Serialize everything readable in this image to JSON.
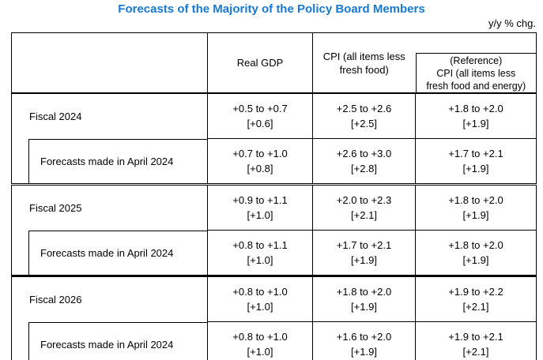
{
  "page": {
    "title": "Forecasts of the Majority of the Policy Board Members",
    "unit_note": "y/y % chg."
  },
  "colors": {
    "title_blue": "#1679d4",
    "table_border": "#000000",
    "background": "#ffffff"
  },
  "table": {
    "header": {
      "real_gdp": "Real GDP",
      "cpi": "CPI (all items less\nfresh food)",
      "reference": "(Reference)\nCPI (all items less\nfresh food and energy)"
    },
    "rows": [
      {
        "label": "Fiscal 2024",
        "indent": false,
        "gdp_range": "+0.5 to +0.7",
        "gdp_median": "[+0.6]",
        "cpi_range": "+2.5 to +2.6",
        "cpi_median": "[+2.5]",
        "ref_range": "+1.8 to +2.0",
        "ref_median": "[+1.9]"
      },
      {
        "label": "Forecasts made in April 2024",
        "indent": true,
        "gdp_range": "+0.7 to +1.0",
        "gdp_median": "[+0.8]",
        "cpi_range": "+2.6 to +3.0",
        "cpi_median": "[+2.8]",
        "ref_range": "+1.7 to +2.1",
        "ref_median": "[+1.9]"
      },
      {
        "label": "Fiscal 2025",
        "indent": false,
        "gdp_range": "+0.9 to +1.1",
        "gdp_median": "[+1.0]",
        "cpi_range": "+2.0 to +2.3",
        "cpi_median": "[+2.1]",
        "ref_range": "+1.8 to +2.0",
        "ref_median": "[+1.9]"
      },
      {
        "label": "Forecasts made in April 2024",
        "indent": true,
        "gdp_range": "+0.8 to +1.1",
        "gdp_median": "[+1.0]",
        "cpi_range": "+1.7 to +2.1",
        "cpi_median": "[+1.9]",
        "ref_range": "+1.8 to +2.0",
        "ref_median": "[+1.9]"
      },
      {
        "label": "Fiscal 2026",
        "indent": false,
        "gdp_range": "+0.8 to +1.0",
        "gdp_median": "[+1.0]",
        "cpi_range": "+1.8 to +2.0",
        "cpi_median": "[+1.9]",
        "ref_range": "+1.9 to +2.2",
        "ref_median": "[+2.1]"
      },
      {
        "label": "Forecasts made in April 2024",
        "indent": true,
        "gdp_range": "+0.8 to +1.0",
        "gdp_median": "[+1.0]",
        "cpi_range": "+1.6 to +2.0",
        "cpi_median": "[+1.9]",
        "ref_range": "+1.9 to +2.1",
        "ref_median": "[+2.1]"
      }
    ]
  }
}
